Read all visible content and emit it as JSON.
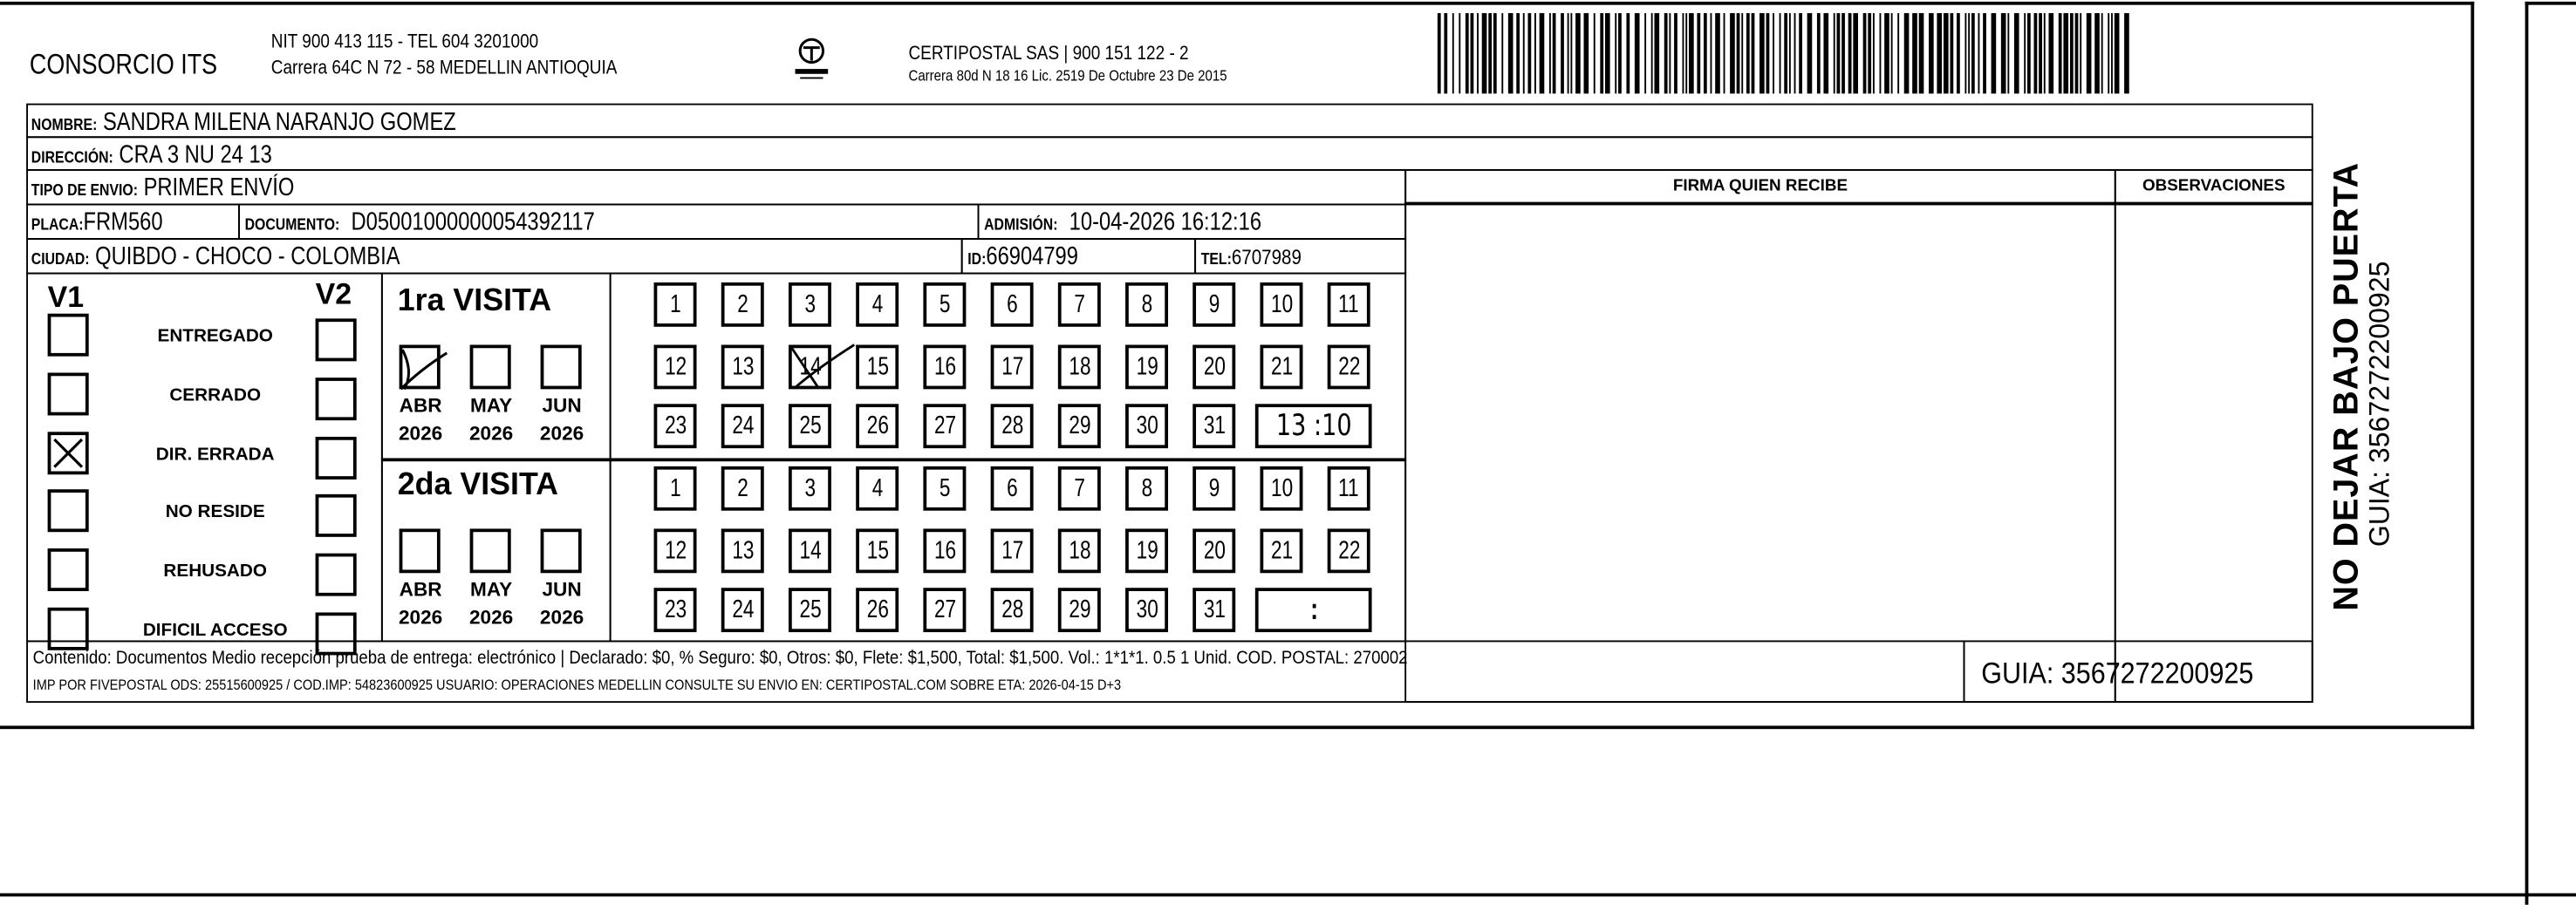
{
  "header": {
    "company": "CONSORCIO ITS",
    "company_line1": "NIT 900 413 115 - TEL 604 3201000",
    "company_line2": "Carrera 64C N 72 - 58 MEDELLIN ANTIOQUIA",
    "logo_text": "CERTIPOSTAL",
    "carrier_line1": "CERTIPOSTAL SAS | 900 151 122 - 2",
    "carrier_line2": "Carrera 80d N 18 16  Lic. 2519 De Octubre 23 De 2015",
    "barcode_value": "3567272200925"
  },
  "recipient": {
    "name_label": "NOMBRE:",
    "name": "SANDRA MILENA NARANJO GOMEZ",
    "address_label": "DIRECCIÓN:",
    "address": "CRA 3 NU 24 13",
    "shipment_type_label": "TIPO DE ENVIO:",
    "shipment_type": "PRIMER ENVÍO",
    "plate_label": "PLACA:",
    "plate": "FRM560",
    "document_label": "DOCUMENTO:",
    "document": "D05001000000054392117",
    "admission_label": "ADMISIÓN:",
    "admission": "10-04-2026 16:12:16",
    "city_label": "CIUDAD:",
    "city": "QUIBDO - CHOCO - COLOMBIA",
    "id_label": "ID:",
    "id": "66904799",
    "tel_label": "TEL:",
    "tel": "6707989"
  },
  "columns": {
    "signature": "FIRMA QUIEN RECIBE",
    "observations": "OBSERVACIONES"
  },
  "status": {
    "v1_label": "V1",
    "v2_label": "V2",
    "options": [
      {
        "label": "ENTREGADO",
        "v1": false,
        "v2": false
      },
      {
        "label": "CERRADO",
        "v1": false,
        "v2": false
      },
      {
        "label": "DIR. ERRADA",
        "v1": true,
        "v2": false
      },
      {
        "label": "NO RESIDE",
        "v1": false,
        "v2": false
      },
      {
        "label": "REHUSADO",
        "v1": false,
        "v2": false
      },
      {
        "label": "DIFICIL ACCESO",
        "v1": false,
        "v2": false
      }
    ]
  },
  "visits": [
    {
      "title": "1ra VISITA",
      "months": [
        {
          "m": "ABR",
          "y": "2026",
          "checked": true
        },
        {
          "m": "MAY",
          "y": "2026",
          "checked": false
        },
        {
          "m": "JUN",
          "y": "2026",
          "checked": false
        }
      ],
      "marked_day": 14,
      "time": "13 :10"
    },
    {
      "title": "2da VISITA",
      "months": [
        {
          "m": "ABR",
          "y": "2026",
          "checked": false
        },
        {
          "m": "MAY",
          "y": "2026",
          "checked": false
        },
        {
          "m": "JUN",
          "y": "2026",
          "checked": false
        }
      ],
      "marked_day": null,
      "time": ":"
    }
  ],
  "footer": {
    "line1": "Contenido: Documentos Medio recepción prueba de entrega: electrónico | Declarado: $0, % Seguro: $0, Otros: $0, Flete: $1,500, Total: $1,500. Vol.: 1*1*1. 0.5  1 Unid. COD. POSTAL: 270002",
    "line2": "IMP POR FIVEPOSTAL ODS: 25515600925 / COD.IMP: 54823600925 USUARIO: OPERACIONES MEDELLIN CONSULTE SU ENVIO EN: CERTIPOSTAL.COM SOBRE ETA: 2026-04-15 D+3",
    "guia": "GUIA: 3567272200925"
  },
  "side": {
    "warning": "NO DEJAR BAJO PUERTA",
    "guia": "GUIA: 3567272200925"
  }
}
